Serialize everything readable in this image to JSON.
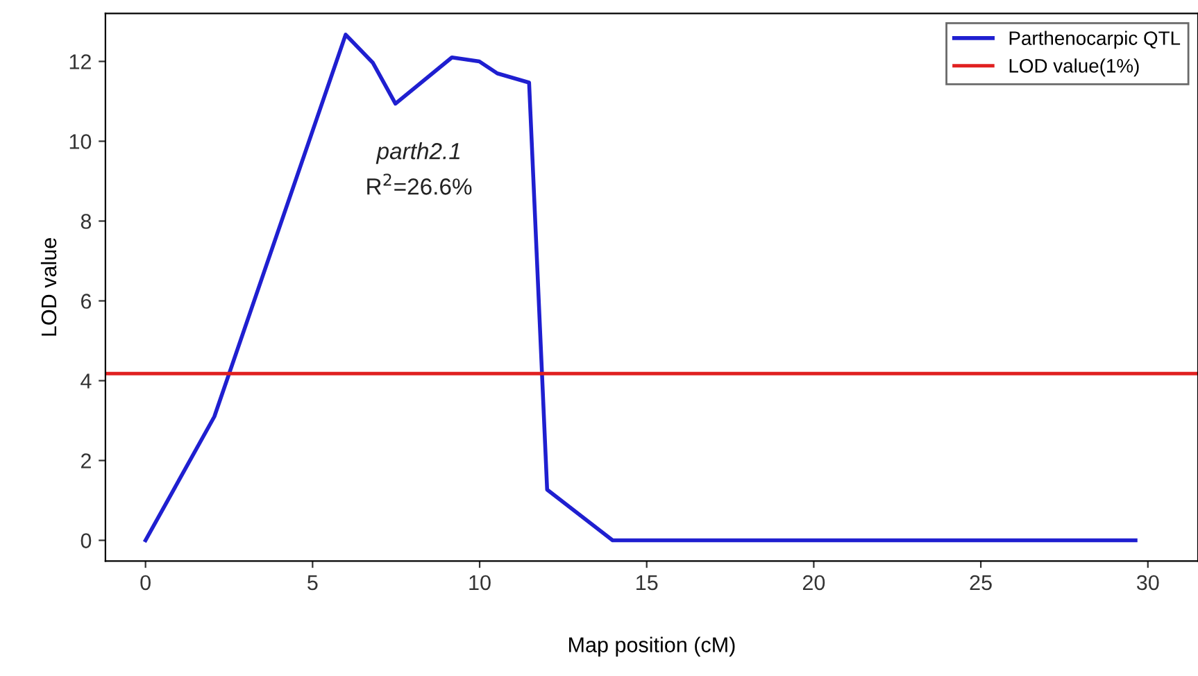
{
  "chart_data": {
    "type": "line",
    "xlabel": "Map position (cM)",
    "ylabel": "LOD value",
    "x": [
      0,
      2.06,
      5.99,
      6.8,
      7.48,
      9.17,
      9.99,
      10.53,
      11.48,
      12.02,
      13.98,
      29.63
    ],
    "series": [
      {
        "name": "Parthenocarpic QTL",
        "color": "#1f1fd0",
        "values": [
          0,
          3.1,
          12.67,
          11.97,
          10.94,
          12.1,
          12.0,
          11.7,
          11.47,
          1.27,
          0,
          0
        ]
      }
    ],
    "ref_lines": [
      {
        "axis": "y",
        "value": 4.18,
        "label": "LOD value(1%)",
        "color": "#e02020"
      }
    ],
    "annotations": [
      "parth2.1",
      "R$^{2}$=26.6%"
    ],
    "xlim": [
      -1.2,
      31.5
    ],
    "ylim": [
      -0.52,
      13.2
    ],
    "xticks": [
      0,
      5,
      10,
      15,
      20,
      25,
      30
    ],
    "yticks": [
      0,
      2,
      4,
      6,
      8,
      10,
      12
    ],
    "legend": "top right",
    "grid": false,
    "marker": "none",
    "line_style": "solid"
  }
}
